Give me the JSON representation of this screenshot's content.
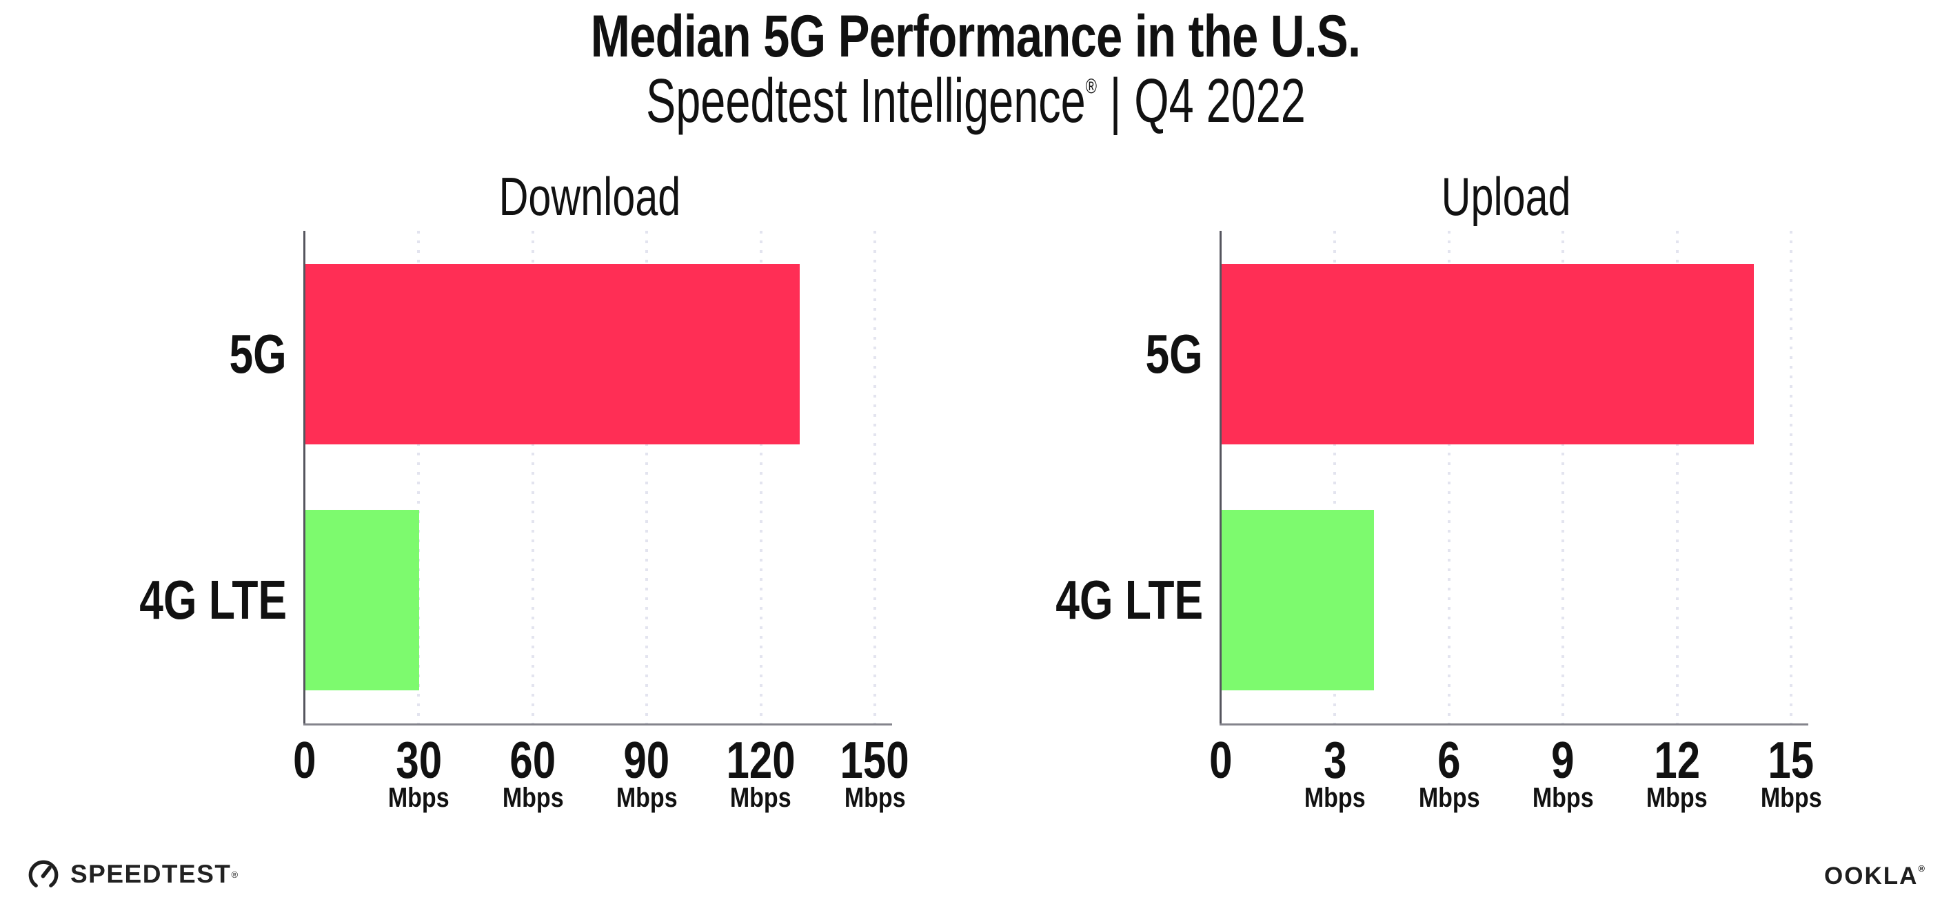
{
  "header": {
    "title": "Median 5G Performance in the U.S.",
    "subtitle_brand": "Speedtest Intelligence",
    "subtitle_registered": "®",
    "subtitle_separator": "|",
    "subtitle_period": "Q4 2022"
  },
  "chart_data": [
    {
      "type": "bar",
      "orientation": "horizontal",
      "title": "Download",
      "categories": [
        "5G",
        "4G LTE"
      ],
      "values": [
        130,
        30
      ],
      "unit": "Mbps",
      "series_colors": [
        "#ff2e55",
        "#7dfa6e"
      ],
      "xlim": [
        0,
        150
      ],
      "xticks": [
        0,
        30,
        60,
        90,
        120,
        150
      ],
      "xtick_unit": "Mbps",
      "grid": "dotted-vertical-major",
      "legend": "none"
    },
    {
      "type": "bar",
      "orientation": "horizontal",
      "title": "Upload",
      "categories": [
        "5G",
        "4G LTE"
      ],
      "values": [
        14,
        4
      ],
      "unit": "Mbps",
      "series_colors": [
        "#ff2e55",
        "#7dfa6e"
      ],
      "xlim": [
        0,
        15
      ],
      "xticks": [
        0,
        3,
        6,
        9,
        12,
        15
      ],
      "xtick_unit": "Mbps",
      "grid": "dotted-vertical-major",
      "legend": "none"
    }
  ],
  "footer": {
    "speedtest_logo_text": "SPEEDTEST",
    "speedtest_mark": "®",
    "ookla_logo_text": "OOKLA",
    "ookla_mark": "®"
  },
  "icons": {
    "speedtest": "gauge-icon"
  },
  "colors": {
    "bar_5g": "#ff2e55",
    "bar_4g_lte": "#7dfa6e",
    "x_axis_line": "#84848c",
    "y_axis_line": "#55555e",
    "gridline": "#e3e4ef",
    "text": "#111111",
    "logo": "#1e1e1e"
  }
}
